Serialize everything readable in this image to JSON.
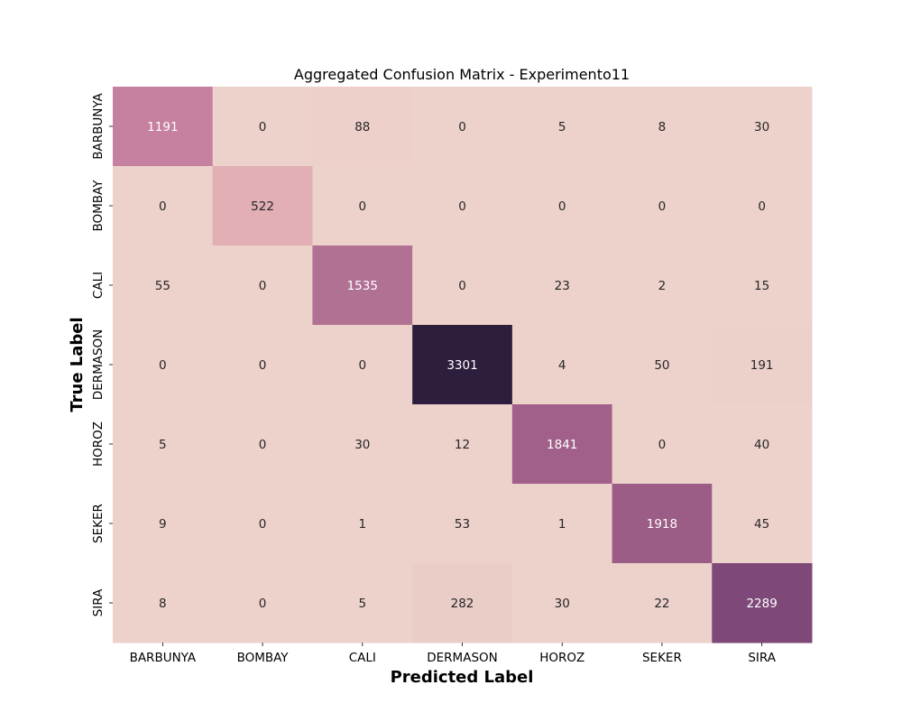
{
  "chart_data": {
    "type": "heatmap",
    "title": "Aggregated Confusion Matrix - Experimento11",
    "xlabel": "Predicted Label",
    "ylabel": "True Label",
    "x_categories": [
      "BARBUNYA",
      "BOMBAY",
      "CALI",
      "DERMASON",
      "HOROZ",
      "SEKER",
      "SIRA"
    ],
    "y_categories": [
      "BARBUNYA",
      "BOMBAY",
      "CALI",
      "DERMASON",
      "HOROZ",
      "SEKER",
      "SIRA"
    ],
    "values": [
      [
        1191,
        0,
        88,
        0,
        5,
        8,
        30
      ],
      [
        0,
        522,
        0,
        0,
        0,
        0,
        0
      ],
      [
        55,
        0,
        1535,
        0,
        23,
        2,
        15
      ],
      [
        0,
        0,
        0,
        3301,
        4,
        50,
        191
      ],
      [
        5,
        0,
        30,
        12,
        1841,
        0,
        40
      ],
      [
        9,
        0,
        1,
        53,
        1,
        1918,
        45
      ],
      [
        8,
        0,
        5,
        282,
        30,
        22,
        2289
      ]
    ],
    "colorbar": false,
    "colormap": "cubehelix-pink-purple"
  }
}
